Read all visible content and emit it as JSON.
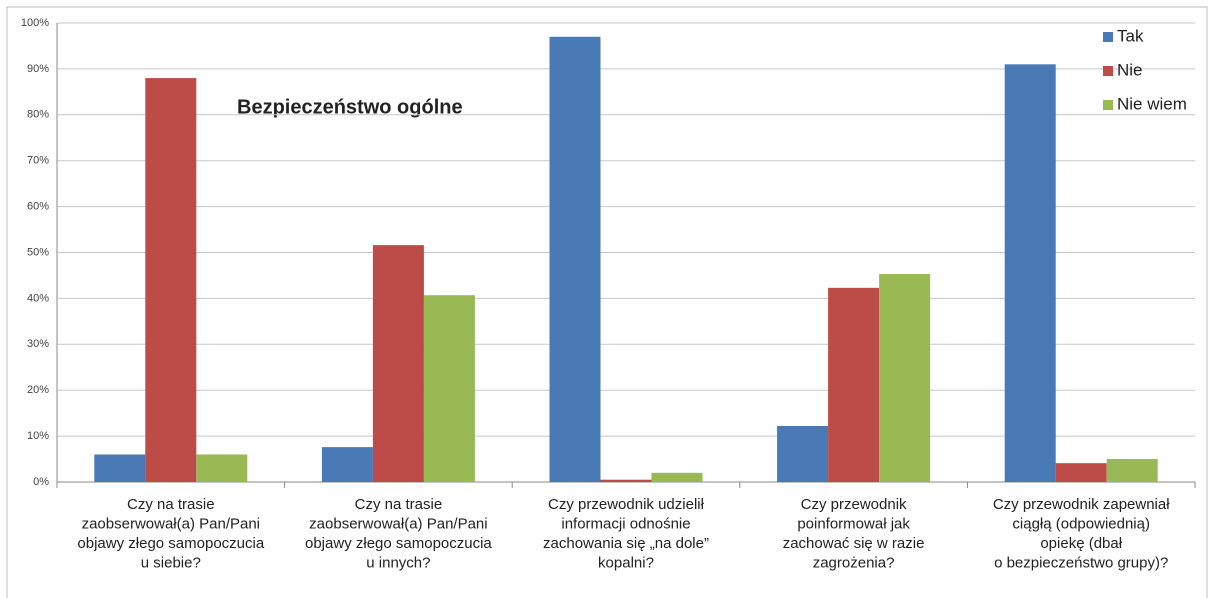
{
  "chart_data": {
    "type": "bar",
    "title": "Bezpieczeństwo ogólne",
    "categories": [
      [
        "Czy na trasie",
        "zaobserwował(a) Pan/Pani",
        "objawy złego samopoczucia",
        "u siebie?"
      ],
      [
        "Czy na trasie",
        "zaobserwował(a) Pan/Pani",
        "objawy złego samopoczucia",
        "u innych?"
      ],
      [
        "Czy przewodnik udzielił",
        "informacji odnośnie",
        "zachowania się „na dole”",
        "kopalni?"
      ],
      [
        "Czy przewodnik",
        "poinformował jak",
        "zachować się w razie",
        "zagrożenia?"
      ],
      [
        "Czy przewodnik zapewniał",
        "ciągłą (odpowiednią)",
        "opiekę (dbał",
        "o bezpieczeństwo grupy)?"
      ]
    ],
    "series": [
      {
        "name": "Tak",
        "color": "#4a7ab5",
        "values": [
          6,
          7.6,
          97,
          12.2,
          91
        ]
      },
      {
        "name": "Nie",
        "color": "#bd4b48",
        "values": [
          88,
          51.6,
          0.5,
          42.3,
          4.1
        ]
      },
      {
        "name": "Nie wiem",
        "color": "#98b954",
        "values": [
          6,
          40.7,
          2,
          45.3,
          5
        ]
      }
    ],
    "ylim": [
      0,
      100
    ],
    "yticks": [
      {
        "value": 0,
        "label": "0%"
      },
      {
        "value": 10,
        "label": "10%"
      },
      {
        "value": 20,
        "label": "20%"
      },
      {
        "value": 30,
        "label": "30%"
      },
      {
        "value": 40,
        "label": "40%"
      },
      {
        "value": 50,
        "label": "50%"
      },
      {
        "value": 60,
        "label": "60%"
      },
      {
        "value": 70,
        "label": "70%"
      },
      {
        "value": 80,
        "label": "80%"
      },
      {
        "value": 90,
        "label": "90%"
      },
      {
        "value": 100,
        "label": "100%"
      }
    ],
    "grid": true,
    "legend": "top-right"
  }
}
